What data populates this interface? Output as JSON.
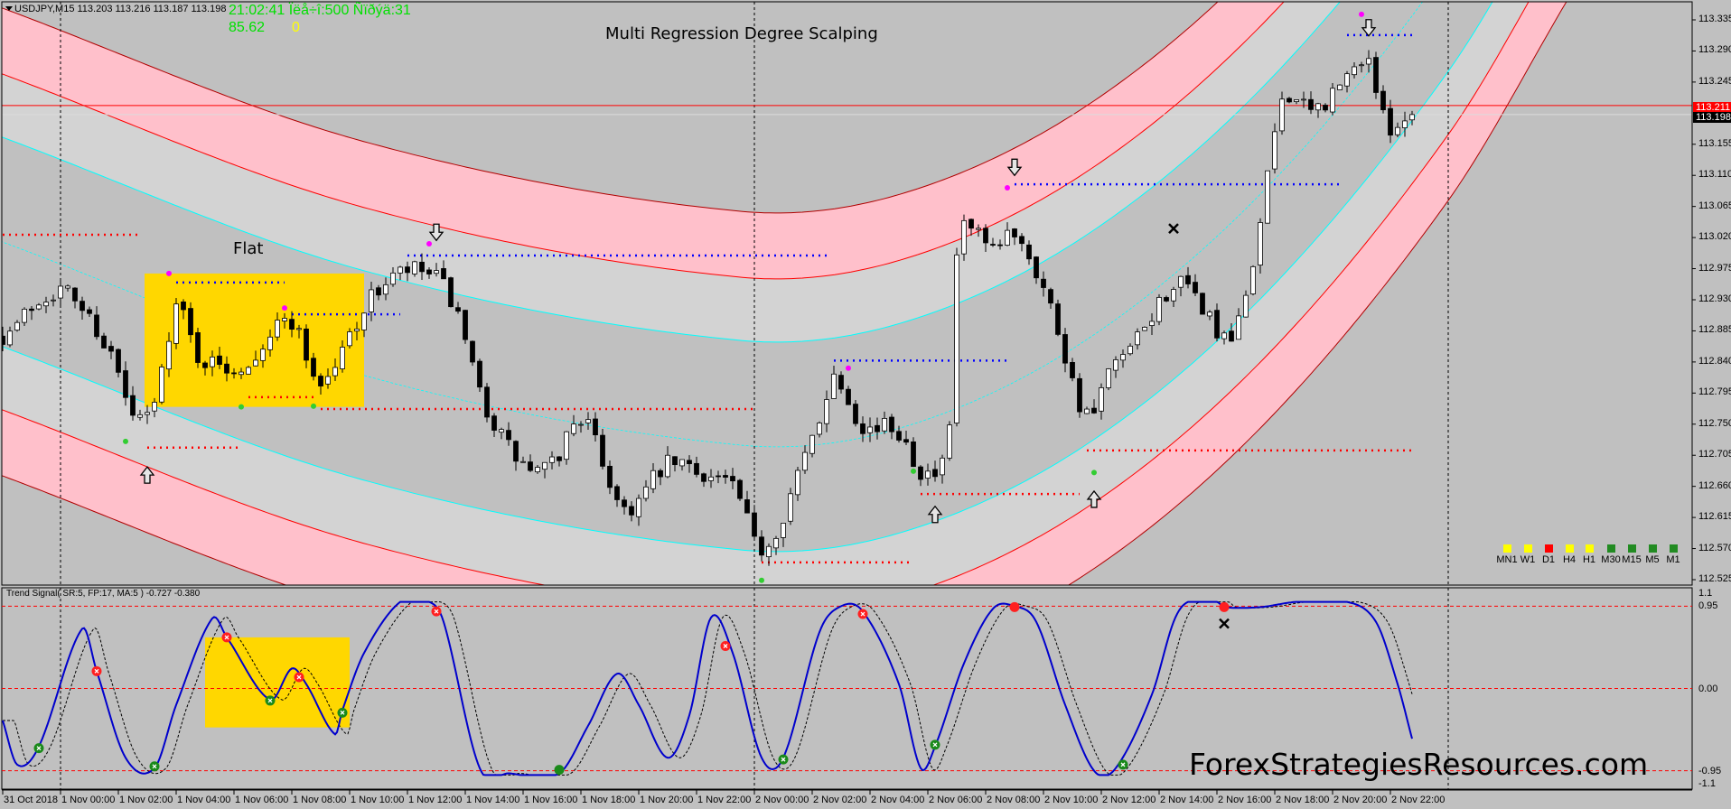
{
  "header": {
    "symbol_info": "USDJPY,M15  113.203 113.216 113.187 113.198",
    "clock_line": "21:02:41 Ïëå÷î:500 Ñïðýä:31",
    "value_line": "85.62",
    "value_flag": "0"
  },
  "title": "Multi Regression Degree Scalping",
  "flat_label": "Flat",
  "indicator_label": "Trend Signal( SR:5, FP:17, MA:5 ) -0.727 -0.380",
  "watermark": "ForexStrategiesResources.com",
  "colors": {
    "background": "#c0c0c0",
    "outer_band": "#ffc0cb",
    "inner_band": "#d3d3d3",
    "band_edge": "#ff0000",
    "channel_line": "#00ffff",
    "resistance": "#0000ff",
    "support": "#ff0000",
    "flat_zone": "#ffd700",
    "oscillator": "#0000cc",
    "ask_line": "#ff0000",
    "bid_line": "#dcdcdc"
  },
  "price_axis": {
    "labels": [
      "113.335",
      "113.290",
      "113.245",
      "113.155",
      "113.110",
      "113.065",
      "113.020",
      "112.975",
      "112.930",
      "112.885",
      "112.840",
      "112.795",
      "112.750",
      "112.705",
      "112.660",
      "112.615",
      "112.570",
      "112.525"
    ],
    "current_ask": "113.211",
    "current_bid": "113.198"
  },
  "indicator_axis": {
    "labels": [
      "1.1",
      "0.95",
      "0.00",
      "-0.95",
      "-1.1"
    ]
  },
  "time_axis": [
    "31 Oct 2018",
    "1 Nov 00:00",
    "1 Nov 02:00",
    "1 Nov 04:00",
    "1 Nov 06:00",
    "1 Nov 08:00",
    "1 Nov 10:00",
    "1 Nov 12:00",
    "1 Nov 14:00",
    "1 Nov 16:00",
    "1 Nov 18:00",
    "1 Nov 20:00",
    "1 Nov 22:00",
    "2 Nov 00:00",
    "2 Nov 02:00",
    "2 Nov 04:00",
    "2 Nov 06:00",
    "2 Nov 08:00",
    "2 Nov 10:00",
    "2 Nov 12:00",
    "2 Nov 14:00",
    "2 Nov 16:00",
    "2 Nov 18:00",
    "2 Nov 20:00",
    "2 Nov 22:00"
  ],
  "timeframes": [
    {
      "label": "MN1",
      "color": "#ffff00"
    },
    {
      "label": "W1",
      "color": "#ffff00"
    },
    {
      "label": "D1",
      "color": "#ff0000"
    },
    {
      "label": "H4",
      "color": "#ffff00"
    },
    {
      "label": "H1",
      "color": "#ffff00"
    },
    {
      "label": "M30",
      "color": "#228b22"
    },
    {
      "label": "M15",
      "color": "#228b22"
    },
    {
      "label": "M5",
      "color": "#228b22"
    },
    {
      "label": "M1",
      "color": "#228b22"
    }
  ],
  "chart_data": {
    "type": "candlestick",
    "symbol": "USDJPY",
    "timeframe": "M15",
    "bars": 196,
    "seed": 7,
    "ylim": [
      112.525,
      113.335
    ],
    "price_path": [
      [
        0,
        112.88
      ],
      [
        1,
        112.884
      ],
      [
        5,
        112.93
      ],
      [
        9,
        112.94
      ],
      [
        15,
        112.85
      ],
      [
        18,
        112.76
      ],
      [
        21,
        112.78
      ],
      [
        24,
        112.92
      ],
      [
        27,
        112.85
      ],
      [
        33,
        112.835
      ],
      [
        37,
        112.88
      ],
      [
        40,
        112.9
      ],
      [
        44,
        112.81
      ],
      [
        49,
        112.9
      ],
      [
        53,
        112.955
      ],
      [
        58,
        112.97
      ],
      [
        62,
        112.93
      ],
      [
        66,
        112.795
      ],
      [
        72,
        112.69
      ],
      [
        76,
        112.69
      ],
      [
        80,
        112.76
      ],
      [
        86,
        112.63
      ],
      [
        92,
        112.69
      ],
      [
        98,
        112.675
      ],
      [
        101,
        112.66
      ],
      [
        105,
        112.57
      ],
      [
        110,
        112.675
      ],
      [
        113,
        112.76
      ],
      [
        115,
        112.82
      ],
      [
        119,
        112.75
      ],
      [
        124,
        112.74
      ],
      [
        128,
        112.675
      ],
      [
        131,
        112.74
      ],
      [
        132,
        112.995
      ],
      [
        134,
        113.03
      ],
      [
        137,
        112.995
      ],
      [
        140,
        113.03
      ],
      [
        145,
        112.92
      ],
      [
        150,
        112.76
      ],
      [
        153,
        112.82
      ],
      [
        157,
        112.87
      ],
      [
        162,
        112.95
      ],
      [
        166,
        112.92
      ],
      [
        170,
        112.87
      ],
      [
        174,
        113.04
      ],
      [
        177,
        113.22
      ],
      [
        181,
        113.2
      ],
      [
        186,
        113.25
      ],
      [
        189,
        113.28
      ],
      [
        191,
        113.19
      ],
      [
        195,
        113.198
      ]
    ],
    "resistance_levels": [
      [
        24,
        39,
        112.955
      ],
      [
        40,
        55,
        112.909
      ],
      [
        56,
        114,
        112.994
      ],
      [
        115,
        139,
        112.842
      ],
      [
        140,
        185,
        113.097
      ],
      [
        186,
        195,
        113.313
      ]
    ],
    "support_levels": [
      [
        0,
        19,
        113.024
      ],
      [
        20,
        33,
        112.716
      ],
      [
        34,
        43,
        112.789
      ],
      [
        44,
        104,
        112.772
      ],
      [
        105,
        126,
        112.55
      ],
      [
        127,
        149,
        112.649
      ],
      [
        150,
        195,
        112.712
      ]
    ],
    "flat_zone": {
      "bars": [
        20,
        50
      ],
      "prices": [
        112.775,
        112.968
      ]
    },
    "sell_dots": [
      [
        23,
        112.968
      ],
      [
        39,
        112.918
      ],
      [
        59,
        113.011
      ],
      [
        117,
        112.831
      ],
      [
        139,
        113.092
      ],
      [
        188,
        113.343
      ]
    ],
    "buy_dots": [
      [
        17,
        112.725
      ],
      [
        33,
        112.775
      ],
      [
        43,
        112.776
      ],
      [
        105,
        112.524
      ],
      [
        126,
        112.682
      ],
      [
        151,
        112.68
      ]
    ],
    "sell_arrows": [
      [
        60,
        113.025
      ],
      [
        140,
        113.119
      ],
      [
        189,
        113.321
      ]
    ],
    "buy_arrows": [
      [
        20,
        112.679
      ],
      [
        129,
        112.622
      ],
      [
        151,
        112.644
      ]
    ],
    "exit_marks": [
      [
        162,
        113.033
      ]
    ],
    "indicator": {
      "ylim": [
        -1.1,
        1.1
      ],
      "levels": [
        0.95,
        0,
        -0.95
      ],
      "main": [
        [
          0,
          -0.37
        ],
        [
          2,
          -0.88
        ],
        [
          5,
          -0.67
        ],
        [
          11,
          0.69
        ],
        [
          13,
          0.2
        ],
        [
          17,
          -0.8
        ],
        [
          21,
          -0.92
        ],
        [
          24,
          -0.19
        ],
        [
          29,
          0.81
        ],
        [
          31,
          0.59
        ],
        [
          37,
          -0.13
        ],
        [
          40,
          0.23
        ],
        [
          42,
          0.05
        ],
        [
          46,
          -0.53
        ],
        [
          47,
          -0.25
        ],
        [
          50,
          0.41
        ],
        [
          55,
          1.0
        ],
        [
          59,
          1.0
        ],
        [
          61,
          0.77
        ],
        [
          66,
          -0.92
        ],
        [
          70,
          -0.98
        ],
        [
          77,
          -0.98
        ],
        [
          81,
          -0.43
        ],
        [
          85,
          0.17
        ],
        [
          88,
          -0.19
        ],
        [
          92,
          -0.8
        ],
        [
          95,
          -0.31
        ],
        [
          98,
          0.82
        ],
        [
          101,
          0.41
        ],
        [
          105,
          -0.8
        ],
        [
          108,
          -0.8
        ],
        [
          113,
          0.65
        ],
        [
          116,
          0.95
        ],
        [
          119,
          0.89
        ],
        [
          124,
          0.05
        ],
        [
          127,
          -0.92
        ],
        [
          129,
          -0.67
        ],
        [
          133,
          0.29
        ],
        [
          137,
          0.92
        ],
        [
          140,
          0.95
        ],
        [
          143,
          0.77
        ],
        [
          147,
          -0.19
        ],
        [
          151,
          -0.95
        ],
        [
          154,
          -0.92
        ],
        [
          159,
          -0.07
        ],
        [
          162,
          0.77
        ],
        [
          164,
          1.0
        ],
        [
          168,
          1.0
        ],
        [
          169,
          0.94
        ],
        [
          174,
          0.94
        ],
        [
          179,
          1.0
        ],
        [
          186,
          1.0
        ],
        [
          190,
          0.77
        ],
        [
          193,
          0.05
        ],
        [
          195,
          -0.58
        ]
      ],
      "sell_signals": [
        [
          13,
          0.2,
          "open"
        ],
        [
          31,
          0.59,
          "open"
        ],
        [
          41,
          0.13,
          "open"
        ],
        [
          60,
          0.89,
          "open"
        ],
        [
          100,
          0.49,
          "open"
        ],
        [
          119,
          0.86,
          "open"
        ],
        [
          140,
          0.94,
          "filled"
        ],
        [
          169,
          0.94,
          "filled"
        ]
      ],
      "buy_signals": [
        [
          5,
          -0.69,
          "open"
        ],
        [
          21,
          -0.9,
          "open"
        ],
        [
          37,
          -0.14,
          "open"
        ],
        [
          47,
          -0.28,
          "open"
        ],
        [
          77,
          -0.94,
          "filled"
        ],
        [
          108,
          -0.82,
          "open"
        ],
        [
          129,
          -0.65,
          "open"
        ],
        [
          155,
          -0.88,
          "open"
        ]
      ],
      "exit_marks": [
        [
          169,
          0.75
        ]
      ],
      "flat_zone": {
        "bars": [
          28,
          48
        ],
        "values": [
          -0.45,
          0.59
        ]
      }
    }
  }
}
